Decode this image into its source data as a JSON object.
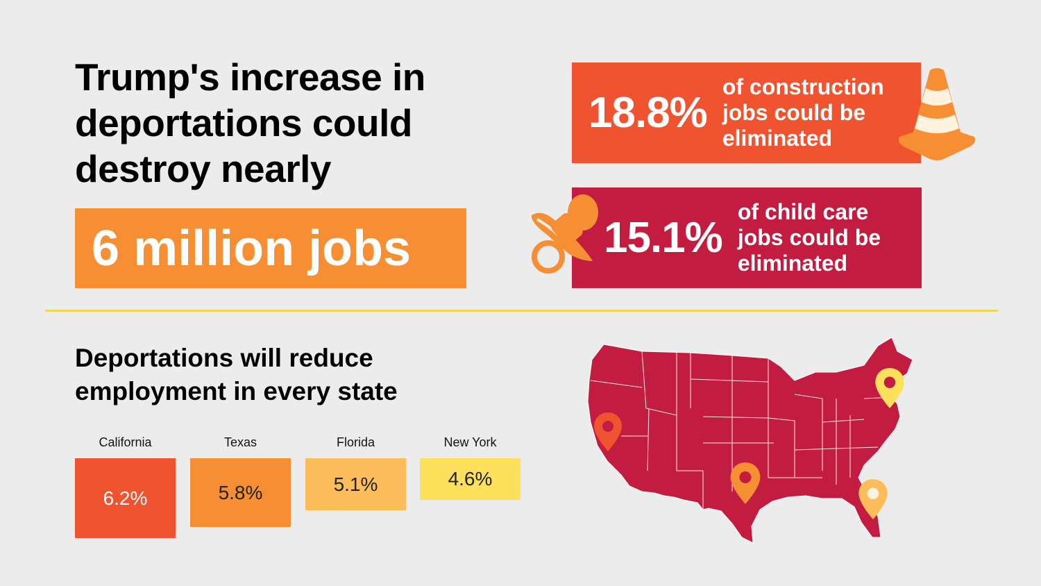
{
  "headline": {
    "lines": [
      "Trump's increase in",
      "deportations could",
      "destroy nearly"
    ],
    "highlight": "6 million jobs"
  },
  "stats": [
    {
      "percent": "18.8%",
      "lines": [
        "of construction",
        "jobs could be",
        "eliminated"
      ],
      "color": "#f05330",
      "icon": "traffic-cone-icon"
    },
    {
      "percent": "15.1%",
      "lines": [
        "of child care",
        "jobs could be",
        "eliminated"
      ],
      "color": "#c21d40",
      "icon": "pacifier-icon"
    }
  ],
  "subheading": {
    "lines": [
      "Deportations will reduce",
      "employment in every state"
    ]
  },
  "state_chart": {
    "type": "bar",
    "categories": [
      "California",
      "Texas",
      "Florida",
      "New York"
    ],
    "values": [
      6.2,
      5.8,
      5.1,
      4.6
    ],
    "labels": [
      "6.2%",
      "5.8%",
      "5.1%",
      "4.6%"
    ],
    "colors": [
      "#f05330",
      "#f68f33",
      "#fdbd5a",
      "#fde05b"
    ],
    "label_colors": [
      "#ffffff",
      "#222222",
      "#222222",
      "#222222"
    ]
  },
  "map": {
    "icon": "us-map-icon",
    "fill": "#c21d40",
    "pins": [
      {
        "name": "california-pin-icon",
        "color": "#f05330"
      },
      {
        "name": "texas-pin-icon",
        "color": "#f68f33"
      },
      {
        "name": "florida-pin-icon",
        "color": "#fdbd5a"
      },
      {
        "name": "new-york-pin-icon",
        "color": "#fde05b"
      }
    ]
  }
}
